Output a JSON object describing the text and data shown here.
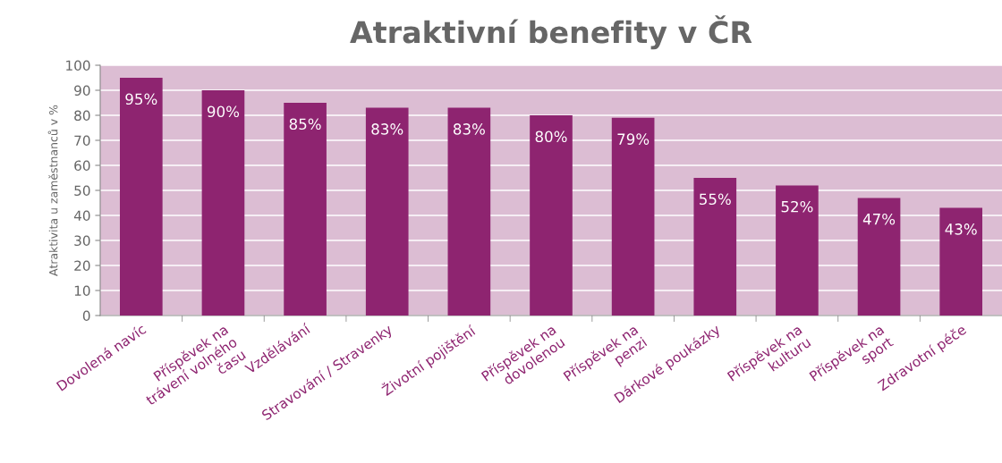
{
  "chart_data": {
    "type": "bar",
    "title": "Atraktivní benefity v ČR",
    "ylabel": "Atraktivita u zaměstnanců v %",
    "categories": [
      "Dovolená navíc",
      "Příspěvek na\ntrávení volného\nčasu",
      "Vzdělávání",
      "Stravování / Stravenky",
      "Životní pojištění",
      "Příspěvek na\ndovolenou",
      "Příspěvek na\npenzi",
      "Dárkové poukázky",
      "Příspěvek na\nkulturu",
      "Příspěvek na\nsport",
      "Zdravotní péče"
    ],
    "values": [
      95,
      90,
      85,
      83,
      83,
      80,
      79,
      55,
      52,
      47,
      43
    ],
    "value_labels": [
      "95%",
      "90%",
      "85%",
      "83%",
      "83%",
      "80%",
      "79%",
      "55%",
      "52%",
      "47%",
      "43%"
    ],
    "color": "#8e2470",
    "ylim": [
      0,
      100
    ],
    "yticks": [
      0,
      10,
      20,
      30,
      40,
      50,
      60,
      70,
      80,
      90,
      100
    ],
    "grid": "y",
    "legend": false
  }
}
